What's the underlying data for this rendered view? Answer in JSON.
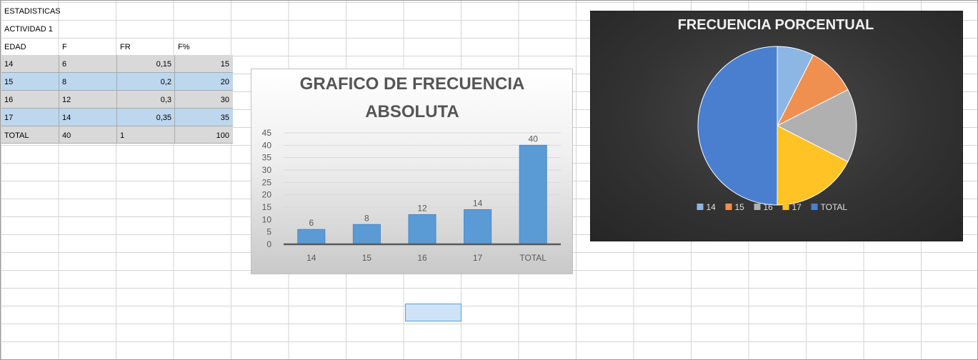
{
  "sheet": {
    "title": "ESTADISTICAS",
    "subtitle": "ACTIVIDAD 1",
    "headers": [
      "EDAD",
      "F",
      "FR",
      "F%"
    ],
    "rows": [
      [
        "14",
        "6",
        "0,15",
        "15"
      ],
      [
        "15",
        "8",
        "0,2",
        "20"
      ],
      [
        "16",
        "12",
        "0,3",
        "30"
      ],
      [
        "17",
        "14",
        "0,35",
        "35"
      ],
      [
        "TOTAL",
        "40",
        "1",
        "100"
      ]
    ],
    "colors": {
      "grey_row": "#d9d9d9",
      "blue_row": "#bdd7ee",
      "selection": "#5b9bd5"
    }
  },
  "chart_data": [
    {
      "type": "bar",
      "title_lines": [
        "GRAFICO DE FRECUENCIA",
        "ABSOLUTA"
      ],
      "categories": [
        "14",
        "15",
        "16",
        "17",
        "TOTAL"
      ],
      "values": [
        6,
        8,
        12,
        14,
        40
      ],
      "y_ticks": [
        "0",
        "5",
        "10",
        "15",
        "20",
        "25",
        "30",
        "35",
        "40",
        "45"
      ],
      "ylim": [
        0,
        45
      ],
      "data_labels": [
        "6",
        "8",
        "12",
        "14",
        "40"
      ],
      "grid": true,
      "legend": "none",
      "bar_color": "#5b9bd5"
    },
    {
      "type": "pie",
      "title": "FRECUENCIA PORCENTUAL",
      "labels": [
        "14",
        "15",
        "16",
        "17",
        "TOTAL"
      ],
      "values": [
        15,
        20,
        30,
        35,
        100
      ],
      "colors": [
        "#8cb6e3",
        "#ef9050",
        "#b0b0b0",
        "#ffc325",
        "#4a7fd0"
      ],
      "legend": "bottom"
    }
  ]
}
